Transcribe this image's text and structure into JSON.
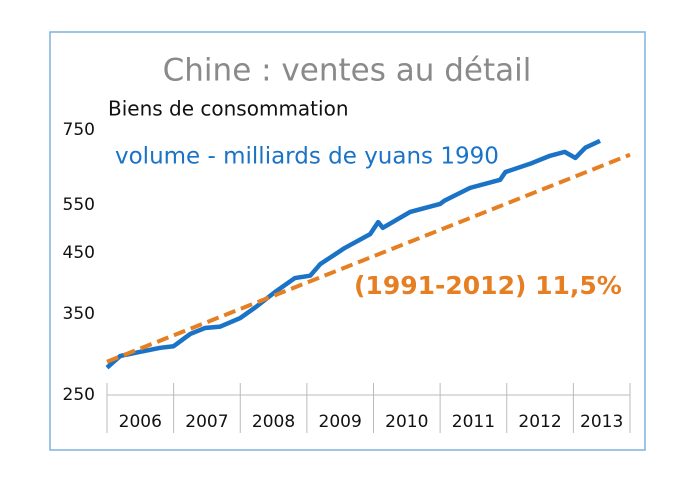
{
  "chart_data": {
    "type": "line",
    "title": "Chine : ventes au détail",
    "subtitle": "Biens de consommation",
    "log_y": true,
    "ylim": [
      250,
      750
    ],
    "yticks": [
      250,
      350,
      450,
      550,
      750
    ],
    "xlim": [
      2006,
      2013.85
    ],
    "xticks": [
      2006,
      2007,
      2008,
      2009,
      2010,
      2011,
      2012,
      2013,
      2013.85
    ],
    "categories": [
      "2006",
      "2007",
      "2008",
      "2009",
      "2010",
      "2011",
      "2012",
      "2013"
    ],
    "series": [
      {
        "name": "volume - milliards de yuans 1990",
        "color": "#1a73c6",
        "style": "solid",
        "x": [
          2006.0,
          2006.2,
          2006.5,
          2006.8,
          2007.0,
          2007.25,
          2007.47,
          2007.7,
          2008.0,
          2008.22,
          2008.52,
          2008.82,
          2009.05,
          2009.2,
          2009.57,
          2009.95,
          2010.07,
          2010.14,
          2010.55,
          2011.0,
          2011.07,
          2011.45,
          2011.9,
          2011.98,
          2012.35,
          2012.65,
          2012.87,
          2013.03,
          2013.18,
          2013.4
        ],
        "values": [
          280,
          294,
          299,
          304,
          306,
          322,
          330,
          332,
          344,
          359,
          383,
          406,
          410,
          430,
          460,
          487,
          512,
          500,
          534,
          552,
          560,
          590,
          610,
          630,
          652,
          674,
          685,
          668,
          697,
          717
        ]
      },
      {
        "name": "(1991-2012) 11,5%",
        "color": "#e67e22",
        "style": "dashed",
        "x": [
          2006.0,
          2013.85
        ],
        "values": [
          287,
          677
        ]
      }
    ]
  }
}
